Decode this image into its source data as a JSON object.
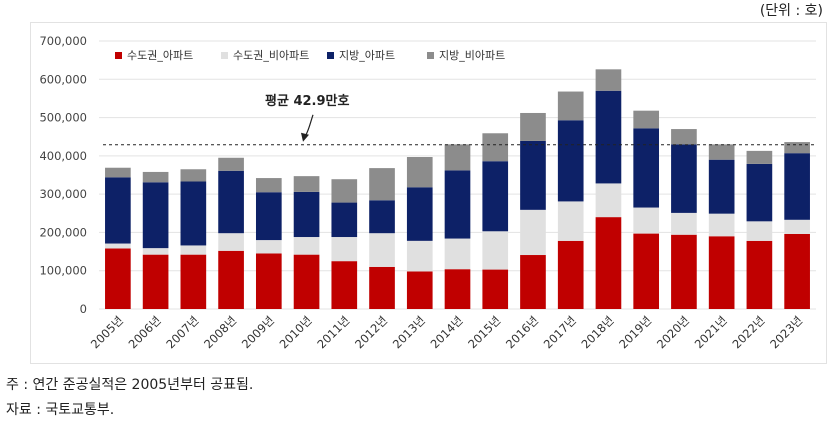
{
  "unit_label": "(단위 : 호)",
  "notes": {
    "note": "주 : 연간 준공실적은 2005년부터 공표됨.",
    "source": "자료 : 국토교통부."
  },
  "chart_data": {
    "type": "bar",
    "stacked": true,
    "title": "",
    "xlabel": "",
    "ylabel": "",
    "ylim": [
      0,
      700000
    ],
    "yticks": [
      "0",
      "100,000",
      "200,000",
      "300,000",
      "400,000",
      "500,000",
      "600,000",
      "700,000"
    ],
    "legend_position": "top-left",
    "categories": [
      "2005년",
      "2006년",
      "2007년",
      "2008년",
      "2009년",
      "2010년",
      "2011년",
      "2012년",
      "2013년",
      "2014년",
      "2015년",
      "2016년",
      "2017년",
      "2018년",
      "2019년",
      "2020년",
      "2021년",
      "2022년",
      "2023년"
    ],
    "series": [
      {
        "name": "수도권_아파트",
        "color": "#c00000",
        "values": [
          158000,
          142000,
          142000,
          152000,
          145000,
          142000,
          125000,
          110000,
          98000,
          104000,
          103000,
          141000,
          178000,
          240000,
          197000,
          194000,
          190000,
          178000,
          196000
        ]
      },
      {
        "name": "수도권_비아파트",
        "color": "#e0e0e0",
        "values": [
          13000,
          17000,
          24000,
          46000,
          35000,
          46000,
          63000,
          88000,
          80000,
          80000,
          100000,
          118000,
          103000,
          88000,
          68000,
          57000,
          59000,
          51000,
          37000
        ]
      },
      {
        "name": "지방_아파트",
        "color": "#0d2167",
        "values": [
          173000,
          172000,
          167000,
          163000,
          125000,
          118000,
          90000,
          86000,
          140000,
          178000,
          183000,
          180000,
          212000,
          242000,
          207000,
          179000,
          141000,
          150000,
          174000
        ]
      },
      {
        "name": "지방_비아파트",
        "color": "#8c8c8c",
        "values": [
          25000,
          27000,
          32000,
          34000,
          37000,
          41000,
          61000,
          84000,
          79000,
          68000,
          73000,
          73000,
          75000,
          56000,
          46000,
          40000,
          40000,
          34000,
          29000
        ]
      }
    ],
    "average_line": {
      "value": 429000,
      "label": "평균 42.9만호"
    }
  }
}
